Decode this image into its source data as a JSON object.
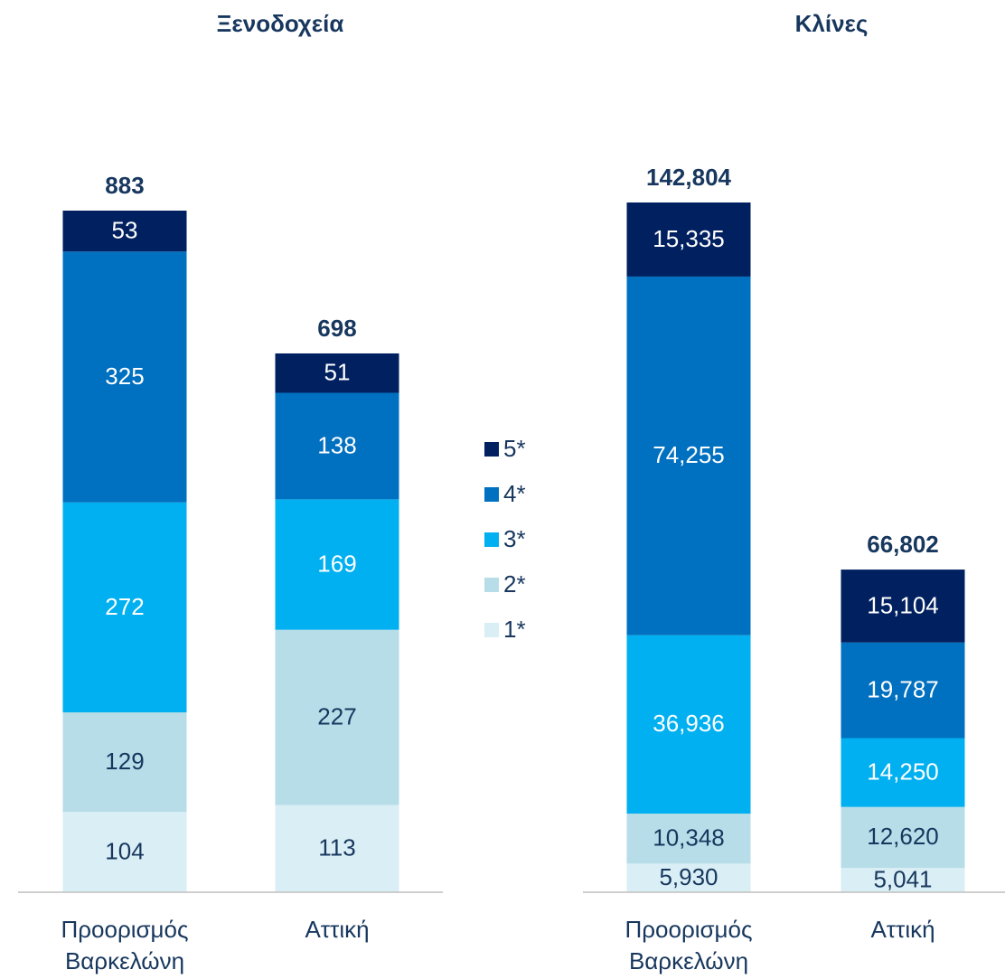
{
  "chart_data": [
    {
      "type": "bar",
      "stacked": true,
      "title": "Ξενοδοχεία",
      "categories": [
        [
          "Προορισμός",
          "Βαρκελώνη"
        ],
        [
          "Αττική"
        ]
      ],
      "series": [
        {
          "name": "1*",
          "color": "#daeef5",
          "values": [
            104,
            113
          ]
        },
        {
          "name": "2*",
          "color": "#b6dde8",
          "values": [
            129,
            227
          ]
        },
        {
          "name": "3*",
          "color": "#00b0f0",
          "values": [
            272,
            169
          ]
        },
        {
          "name": "4*",
          "color": "#0070c0",
          "values": [
            325,
            138
          ]
        },
        {
          "name": "5*",
          "color": "#002060",
          "values": [
            53,
            51
          ]
        }
      ],
      "totals": [
        883,
        698
      ]
    },
    {
      "type": "bar",
      "stacked": true,
      "title": "Κλίνες",
      "categories": [
        [
          "Προορισμός",
          "Βαρκελώνη"
        ],
        [
          "Αττική"
        ]
      ],
      "series": [
        {
          "color": "#daeef5",
          "values": [
            5930,
            5041
          ],
          "value_labels": [
            "5,930",
            "5,041"
          ]
        },
        {
          "color": "#b6dde8",
          "values": [
            10348,
            12620
          ],
          "value_labels": [
            "10,348",
            "12,620"
          ]
        },
        {
          "color": "#00b0f0",
          "values": [
            36936,
            14250
          ],
          "value_labels": [
            "36,936",
            "14,250"
          ]
        },
        {
          "color": "#0070c0",
          "values": [
            74255,
            19787
          ],
          "value_labels": [
            "74,255",
            "19,787"
          ]
        },
        {
          "color": "#002060",
          "values": [
            15335,
            15104
          ],
          "value_labels": [
            "15,335",
            "15,104"
          ]
        }
      ],
      "totals": [
        142804,
        66802
      ],
      "total_labels": [
        "142,804",
        "66,802"
      ]
    }
  ]
}
